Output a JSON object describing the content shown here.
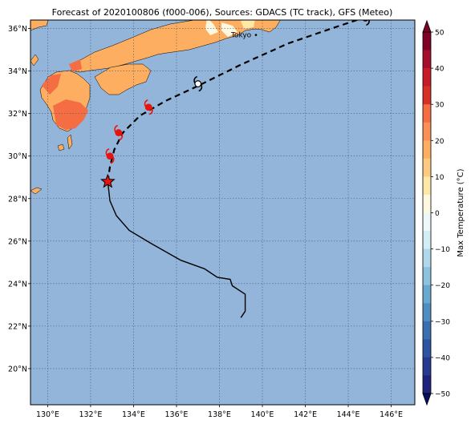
{
  "title": "Forecast of 2020100806 (f000-006), Sources: GDACS (TC track), GFS (Meteo)",
  "map": {
    "lon_range": [
      129.2,
      147.1
    ],
    "lat_range": [
      18.3,
      36.4
    ],
    "lon_ticks": [
      {
        "value": 130,
        "label": "130°E"
      },
      {
        "value": 132,
        "label": "132°E"
      },
      {
        "value": 134,
        "label": "134°E"
      },
      {
        "value": 136,
        "label": "136°E"
      },
      {
        "value": 138,
        "label": "138°E"
      },
      {
        "value": 140,
        "label": "140°E"
      },
      {
        "value": 142,
        "label": "142°E"
      },
      {
        "value": 144,
        "label": "144°E"
      },
      {
        "value": 146,
        "label": "146°E"
      }
    ],
    "lat_ticks": [
      {
        "value": 20,
        "label": "20°N"
      },
      {
        "value": 22,
        "label": "22°N"
      },
      {
        "value": 24,
        "label": "24°N"
      },
      {
        "value": 26,
        "label": "26°N"
      },
      {
        "value": 28,
        "label": "28°N"
      },
      {
        "value": 30,
        "label": "30°N"
      },
      {
        "value": 32,
        "label": "32°N"
      },
      {
        "value": 34,
        "label": "34°N"
      },
      {
        "value": 36,
        "label": "36°N"
      }
    ],
    "ocean_color": "#93b5d9",
    "grid": true,
    "city": {
      "name": "Tokyo",
      "lon": 139.7,
      "lat": 35.7
    }
  },
  "track": {
    "past": [
      [
        139.0,
        22.4
      ],
      [
        139.2,
        22.7
      ],
      [
        139.2,
        23.1
      ],
      [
        139.2,
        23.5
      ],
      [
        138.6,
        23.9
      ],
      [
        138.5,
        24.2
      ],
      [
        137.9,
        24.3
      ],
      [
        137.3,
        24.7
      ],
      [
        136.2,
        25.1
      ],
      [
        134.8,
        25.9
      ],
      [
        133.8,
        26.5
      ],
      [
        133.2,
        27.2
      ],
      [
        132.9,
        27.9
      ],
      [
        132.8,
        28.8
      ]
    ],
    "forecast": [
      [
        132.8,
        28.8
      ],
      [
        132.9,
        29.5
      ],
      [
        133.1,
        30.3
      ],
      [
        133.5,
        31.1
      ],
      [
        134.3,
        31.9
      ],
      [
        135.5,
        32.6
      ],
      [
        137.0,
        33.3
      ],
      [
        139.0,
        34.3
      ],
      [
        141.2,
        35.3
      ],
      [
        143.5,
        36.1
      ],
      [
        145.0,
        36.6
      ]
    ],
    "current_position": {
      "lon": 132.8,
      "lat": 28.8,
      "marker": "star-icon",
      "color": "#e8130f"
    },
    "forecast_symbols": [
      {
        "lon": 132.9,
        "lat": 30.0,
        "color": "#e8130f"
      },
      {
        "lon": 133.3,
        "lat": 31.1,
        "color": "#e8130f"
      },
      {
        "lon": 134.7,
        "lat": 32.3,
        "color": "#e8130f"
      },
      {
        "lon": 137.0,
        "lat": 33.4,
        "color": "#000000"
      },
      {
        "lon": 144.8,
        "lat": 36.5,
        "color": "#000000"
      }
    ]
  },
  "colorbar": {
    "label": "Max Temperature (°C)",
    "ticks": [
      "50",
      "40",
      "30",
      "20",
      "10",
      "0",
      "−10",
      "−20",
      "−30",
      "−40",
      "−50"
    ],
    "levels": [
      {
        "from": 45,
        "to": 50,
        "color": "#800026"
      },
      {
        "from": 40,
        "to": 45,
        "color": "#a50f2c"
      },
      {
        "from": 35,
        "to": 40,
        "color": "#c71b28"
      },
      {
        "from": 30,
        "to": 35,
        "color": "#d73027"
      },
      {
        "from": 25,
        "to": 30,
        "color": "#f46d43"
      },
      {
        "from": 20,
        "to": 25,
        "color": "#fb8f55"
      },
      {
        "from": 15,
        "to": 20,
        "color": "#fdae61"
      },
      {
        "from": 10,
        "to": 15,
        "color": "#fec980"
      },
      {
        "from": 5,
        "to": 10,
        "color": "#fee8a8"
      },
      {
        "from": 0,
        "to": 5,
        "color": "#fff8e0"
      },
      {
        "from": -5,
        "to": 0,
        "color": "#eef8fb"
      },
      {
        "from": -10,
        "to": -5,
        "color": "#d4ecf4"
      },
      {
        "from": -15,
        "to": -10,
        "color": "#b0d8ea"
      },
      {
        "from": -20,
        "to": -15,
        "color": "#8cc2dd"
      },
      {
        "from": -25,
        "to": -20,
        "color": "#6aa9cf"
      },
      {
        "from": -30,
        "to": -25,
        "color": "#4f8fc0"
      },
      {
        "from": -35,
        "to": -30,
        "color": "#3a70b0"
      },
      {
        "from": -40,
        "to": -35,
        "color": "#2c54a0"
      },
      {
        "from": -45,
        "to": -40,
        "color": "#273a8f"
      },
      {
        "from": -50,
        "to": -45,
        "color": "#1f247a"
      }
    ],
    "over_color": "#800026",
    "under_color": "#081060"
  }
}
